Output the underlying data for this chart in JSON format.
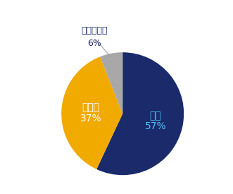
{
  "labels": [
    "はい",
    "いいえ",
    "わからない"
  ],
  "values": [
    57,
    37,
    6
  ],
  "colors": [
    "#1b2a6b",
    "#f0aa00",
    "#a8a8a8"
  ],
  "start_angle": 90,
  "background_color": "#ffffff",
  "annotation_label": "わからない",
  "annotation_pct": "6%",
  "annotation_label_color": "#1b2a6b",
  "annotation_pct_color": "#1b2a6b",
  "hai_label": "はい",
  "hai_pct": "57%",
  "hai_label_color": "#4fc3f7",
  "hai_pct_color": "#4fc3f7",
  "iie_label": "いいえ",
  "iie_pct": "37%",
  "iie_label_color": "#ffffff",
  "iie_pct_color": "#ffffff",
  "label_fontsize": 10,
  "pct_fontsize": 10,
  "annot_fontsize": 9
}
